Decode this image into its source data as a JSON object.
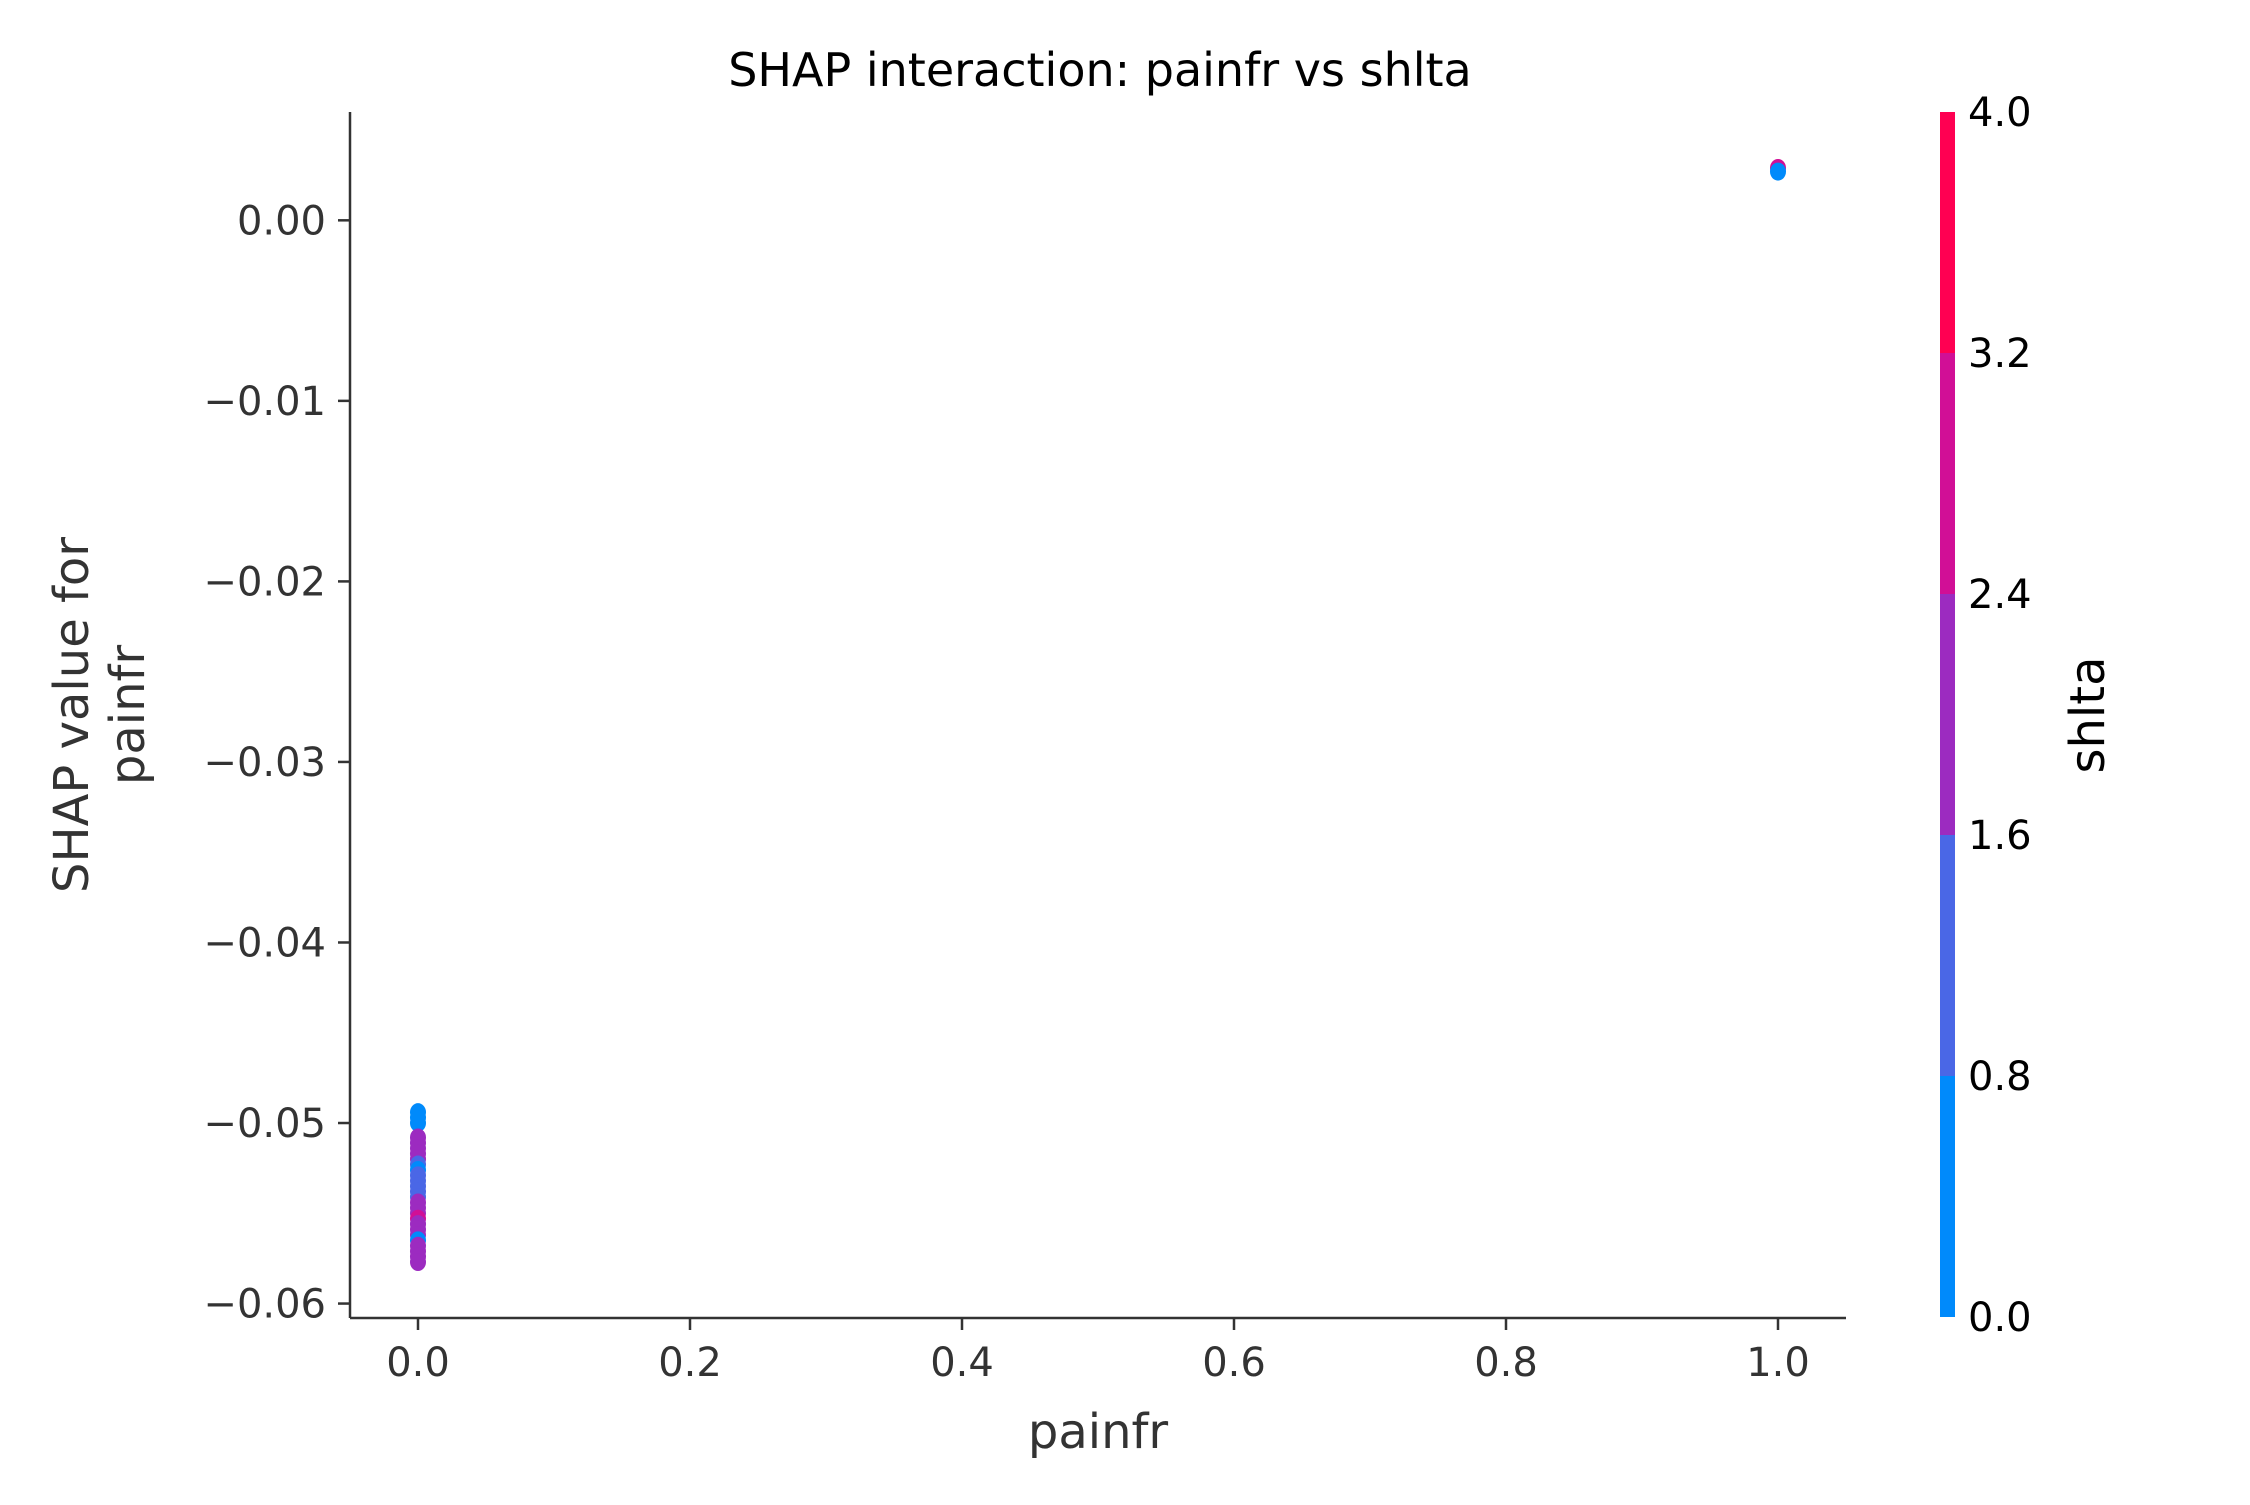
{
  "chart_data": {
    "type": "scatter",
    "title": "SHAP interaction: painfr vs shlta",
    "xlabel": "painfr",
    "ylabel_lines": [
      "SHAP value for",
      "painfr"
    ],
    "xlim": [
      -0.05,
      1.05
    ],
    "ylim": [
      -0.0608,
      0.006
    ],
    "xticks": [
      0.0,
      0.2,
      0.4,
      0.6,
      0.8,
      1.0
    ],
    "xtick_labels": [
      "0.0",
      "0.2",
      "0.4",
      "0.6",
      "0.8",
      "1.0"
    ],
    "yticks": [
      0.0,
      -0.01,
      -0.02,
      -0.03,
      -0.04,
      -0.05,
      -0.06
    ],
    "ytick_labels": [
      "0.00",
      "−0.01",
      "−0.02",
      "−0.03",
      "−0.04",
      "−0.05",
      "−0.06"
    ],
    "grid": false,
    "colorbar": {
      "label": "shlta",
      "range": [
        0.0,
        4.0
      ],
      "ticks": [
        0.0,
        0.8,
        1.6,
        2.4,
        3.2,
        4.0
      ],
      "tick_labels": [
        "0.0",
        "0.8",
        "1.6",
        "2.4",
        "3.2",
        "4.0"
      ],
      "colors": [
        "#008afb",
        "#4a67e6",
        "#9c2bc0",
        "#d10f96",
        "#ff0052"
      ]
    },
    "points": [
      {
        "x": 1.0,
        "y": 0.0029,
        "c": 3.0
      },
      {
        "x": 1.0,
        "y": 0.0027,
        "c": 0.0
      },
      {
        "x": 0.0,
        "y": -0.0494,
        "c": 0.0
      },
      {
        "x": 0.0,
        "y": -0.0497,
        "c": 0.0
      },
      {
        "x": 0.0,
        "y": -0.05,
        "c": 0.0
      },
      {
        "x": 0.0,
        "y": -0.0508,
        "c": 2.0
      },
      {
        "x": 0.0,
        "y": -0.0511,
        "c": 2.0
      },
      {
        "x": 0.0,
        "y": -0.0514,
        "c": 2.0
      },
      {
        "x": 0.0,
        "y": -0.0517,
        "c": 2.0
      },
      {
        "x": 0.0,
        "y": -0.052,
        "c": 2.0
      },
      {
        "x": 0.0,
        "y": -0.0523,
        "c": 1.0
      },
      {
        "x": 0.0,
        "y": -0.0526,
        "c": 0.0
      },
      {
        "x": 0.0,
        "y": -0.0529,
        "c": 1.0
      },
      {
        "x": 0.0,
        "y": -0.0532,
        "c": 1.0
      },
      {
        "x": 0.0,
        "y": -0.0535,
        "c": 1.0
      },
      {
        "x": 0.0,
        "y": -0.0538,
        "c": 1.0
      },
      {
        "x": 0.0,
        "y": -0.0541,
        "c": 1.0
      },
      {
        "x": 0.0,
        "y": -0.0544,
        "c": 2.0
      },
      {
        "x": 0.0,
        "y": -0.0547,
        "c": 2.0
      },
      {
        "x": 0.0,
        "y": -0.055,
        "c": 2.0
      },
      {
        "x": 0.0,
        "y": -0.0553,
        "c": 3.0
      },
      {
        "x": 0.0,
        "y": -0.0556,
        "c": 2.0
      },
      {
        "x": 0.0,
        "y": -0.0559,
        "c": 2.0
      },
      {
        "x": 0.0,
        "y": -0.0562,
        "c": 2.0
      },
      {
        "x": 0.0,
        "y": -0.0565,
        "c": 0.0
      },
      {
        "x": 0.0,
        "y": -0.0568,
        "c": 2.0
      },
      {
        "x": 0.0,
        "y": -0.0571,
        "c": 2.0
      },
      {
        "x": 0.0,
        "y": -0.0574,
        "c": 2.0
      },
      {
        "x": 0.0,
        "y": -0.0577,
        "c": 2.0
      }
    ]
  }
}
